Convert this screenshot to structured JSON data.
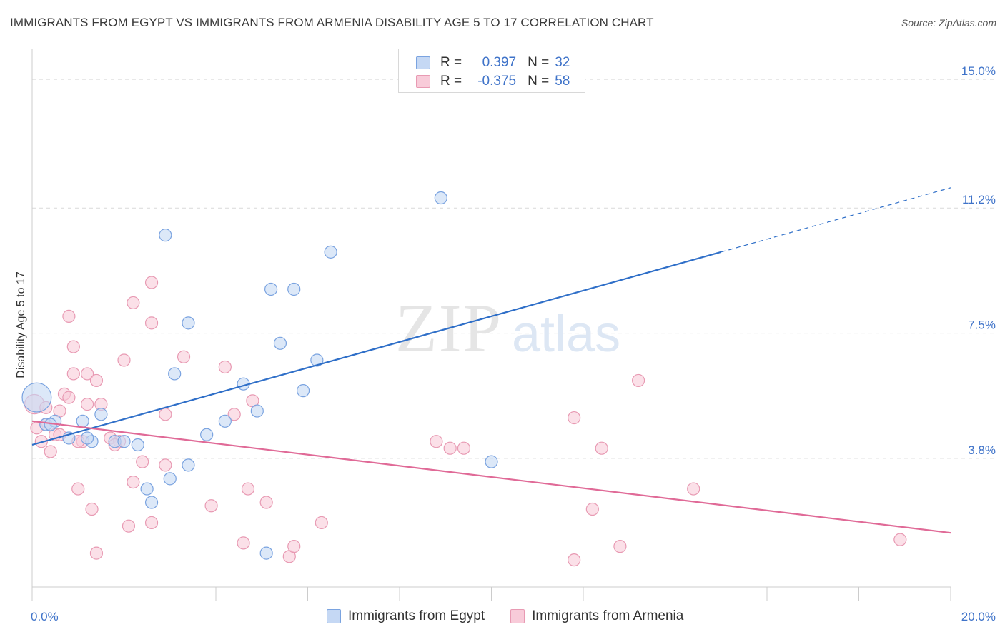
{
  "title": "IMMIGRANTS FROM EGYPT VS IMMIGRANTS FROM ARMENIA DISABILITY AGE 5 TO 17 CORRELATION CHART",
  "source": "Source: ZipAtlas.com",
  "watermark": {
    "zip": "ZIP",
    "atlas": "atlas"
  },
  "legend": {
    "r_label": "R =",
    "n_label": "N =",
    "egypt": {
      "r": "0.397",
      "n": "32"
    },
    "armenia": {
      "r": "-0.375",
      "n": "58"
    }
  },
  "colors": {
    "egypt_fill": "#c5d8f4",
    "egypt_stroke": "#7aa3e0",
    "egypt_line": "#2f6fc8",
    "armenia_fill": "#f8cbd9",
    "armenia_stroke": "#e89ab3",
    "armenia_line": "#e06a97",
    "axis_text": "#3f73c9"
  },
  "chart_data": {
    "type": "scatter",
    "xlabel": "",
    "ylabel": "Disability Age 5 to 17",
    "xlim": [
      0,
      20
    ],
    "ylim": [
      0,
      15.7
    ],
    "x_tick_labels": [
      {
        "value": 0,
        "label": "0.0%"
      },
      {
        "value": 20,
        "label": "20.0%"
      }
    ],
    "y_ticks": [
      {
        "value": 3.8,
        "label": "3.8%"
      },
      {
        "value": 7.5,
        "label": "7.5%"
      },
      {
        "value": 11.2,
        "label": "11.2%"
      },
      {
        "value": 15.0,
        "label": "15.0%"
      }
    ],
    "series": [
      {
        "name": "Immigrants from Egypt",
        "r": 0.397,
        "n": 32,
        "trend": {
          "x0": 0,
          "y0": 4.2,
          "x1": 15,
          "y1": 9.9,
          "dash_to_x": 20,
          "dash_to_y": 11.8
        },
        "points": [
          [
            0.1,
            5.6,
            2.4
          ],
          [
            0.3,
            4.8,
            1
          ],
          [
            0.5,
            4.9,
            1
          ],
          [
            1.1,
            4.9,
            1
          ],
          [
            1.5,
            5.1,
            1
          ],
          [
            1.3,
            4.3,
            1
          ],
          [
            1.8,
            4.3,
            1
          ],
          [
            2.0,
            4.3,
            1
          ],
          [
            2.3,
            4.2,
            1
          ],
          [
            2.5,
            2.9,
            1
          ],
          [
            2.6,
            2.5,
            1
          ],
          [
            3.0,
            3.2,
            1
          ],
          [
            2.9,
            10.4,
            1
          ],
          [
            3.1,
            6.3,
            1
          ],
          [
            3.4,
            7.8,
            1
          ],
          [
            3.8,
            4.5,
            1
          ],
          [
            3.4,
            3.6,
            1
          ],
          [
            4.2,
            4.9,
            1
          ],
          [
            4.6,
            6.0,
            1
          ],
          [
            4.9,
            5.2,
            1
          ],
          [
            5.2,
            8.8,
            1
          ],
          [
            5.4,
            7.2,
            1
          ],
          [
            5.7,
            8.8,
            1
          ],
          [
            5.9,
            5.8,
            1
          ],
          [
            6.2,
            6.7,
            1
          ],
          [
            6.5,
            9.9,
            1
          ],
          [
            8.9,
            11.5,
            1
          ],
          [
            10.0,
            3.7,
            1
          ],
          [
            5.1,
            1.0,
            1
          ],
          [
            1.2,
            4.4,
            1
          ],
          [
            0.8,
            4.4,
            1
          ],
          [
            0.4,
            4.8,
            1
          ]
        ]
      },
      {
        "name": "Immigrants from Armenia",
        "r": -0.375,
        "n": 58,
        "trend": {
          "x0": 0,
          "y0": 4.9,
          "x1": 20,
          "y1": 1.6
        },
        "points": [
          [
            0.05,
            5.4,
            1.6
          ],
          [
            0.1,
            4.7,
            1
          ],
          [
            0.2,
            4.3,
            1
          ],
          [
            0.3,
            5.3,
            1
          ],
          [
            0.4,
            4.0,
            1
          ],
          [
            0.5,
            4.5,
            1
          ],
          [
            0.6,
            5.2,
            1
          ],
          [
            0.7,
            5.7,
            1
          ],
          [
            0.8,
            5.6,
            1
          ],
          [
            0.8,
            8.0,
            1
          ],
          [
            0.9,
            7.1,
            1
          ],
          [
            0.9,
            6.3,
            1
          ],
          [
            1.0,
            2.9,
            1
          ],
          [
            1.1,
            4.3,
            1
          ],
          [
            1.2,
            5.4,
            1
          ],
          [
            1.2,
            6.3,
            1
          ],
          [
            1.3,
            2.3,
            1
          ],
          [
            1.4,
            1.0,
            1
          ],
          [
            1.4,
            6.1,
            1
          ],
          [
            1.5,
            5.4,
            1
          ],
          [
            1.7,
            4.4,
            1
          ],
          [
            1.9,
            4.3,
            1
          ],
          [
            2.0,
            6.7,
            1
          ],
          [
            2.1,
            1.8,
            1
          ],
          [
            2.2,
            3.1,
            1
          ],
          [
            2.2,
            8.4,
            1
          ],
          [
            2.4,
            3.7,
            1
          ],
          [
            2.6,
            7.8,
            1
          ],
          [
            2.6,
            9.0,
            1
          ],
          [
            2.6,
            1.9,
            1
          ],
          [
            2.9,
            5.1,
            1
          ],
          [
            2.9,
            3.6,
            1
          ],
          [
            3.3,
            6.8,
            1
          ],
          [
            3.9,
            2.4,
            1
          ],
          [
            4.2,
            6.5,
            1
          ],
          [
            4.4,
            5.1,
            1
          ],
          [
            4.6,
            1.3,
            1
          ],
          [
            4.8,
            5.5,
            1
          ],
          [
            4.7,
            2.9,
            1
          ],
          [
            5.1,
            2.5,
            1
          ],
          [
            5.6,
            0.9,
            1
          ],
          [
            5.7,
            1.2,
            1
          ],
          [
            6.3,
            1.9,
            1
          ],
          [
            8.8,
            4.3,
            1
          ],
          [
            9.1,
            4.1,
            1
          ],
          [
            9.4,
            4.1,
            1
          ],
          [
            11.8,
            0.8,
            1
          ],
          [
            11.8,
            5.0,
            1
          ],
          [
            12.2,
            2.3,
            1
          ],
          [
            12.4,
            4.1,
            1
          ],
          [
            12.8,
            1.2,
            1
          ],
          [
            13.2,
            6.1,
            1
          ],
          [
            14.4,
            2.9,
            1
          ],
          [
            18.9,
            1.4,
            1
          ],
          [
            0.3,
            4.8,
            1
          ],
          [
            1.0,
            4.3,
            1
          ],
          [
            0.6,
            4.5,
            1
          ],
          [
            1.8,
            4.2,
            1
          ]
        ]
      }
    ]
  }
}
